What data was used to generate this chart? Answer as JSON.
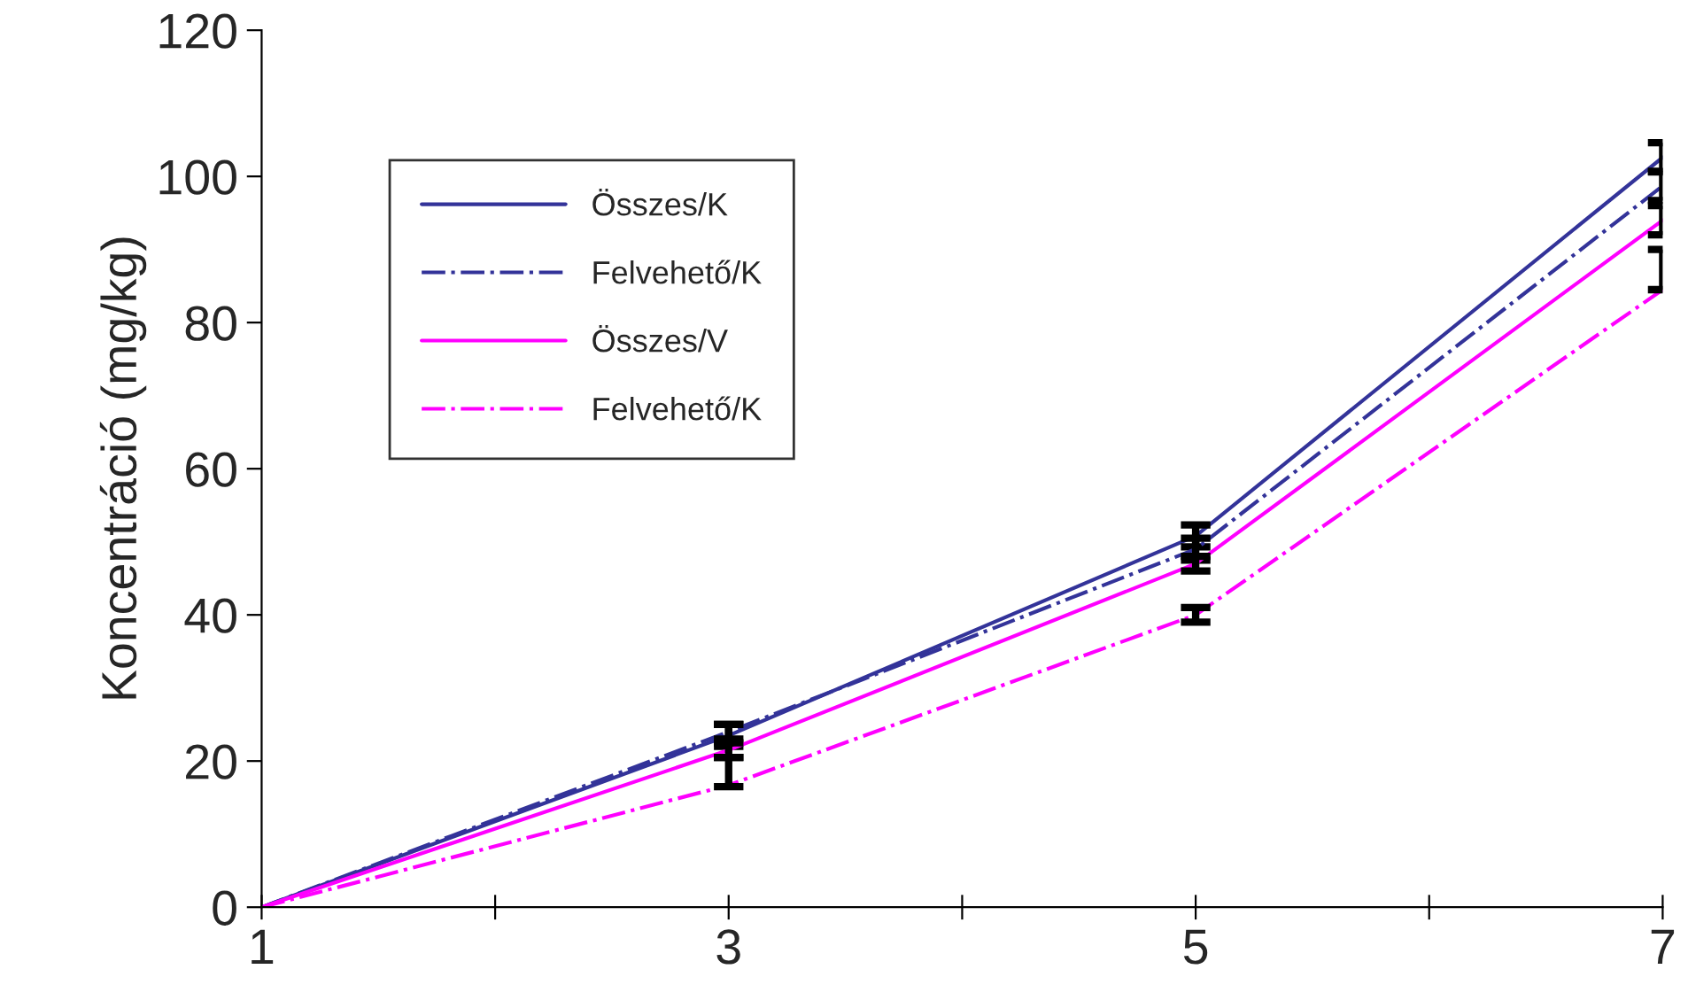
{
  "chart_data": {
    "type": "line",
    "ylabel": "Koncentráció (mg/kg)",
    "x": [
      1,
      3,
      5,
      7
    ],
    "xlim": [
      1,
      7
    ],
    "xticks": [
      1,
      {
        "value": 2,
        "label": null
      },
      3,
      {
        "value": 4,
        "label": null
      },
      5,
      {
        "value": 6,
        "label": null
      },
      7
    ],
    "ylim": [
      0,
      120
    ],
    "yticks": [
      0,
      20,
      40,
      60,
      80,
      100,
      120
    ],
    "grid": false,
    "legend": "top left",
    "marker": "none",
    "series": [
      {
        "name": "Összes/K",
        "color": "#333399",
        "line_style": "solid",
        "values": [
          0,
          23.5,
          50.8,
          102.6
        ],
        "errors": [
          null,
          1.5,
          1.5,
          2
        ]
      },
      {
        "name": "Felvehető/K",
        "color": "#333399",
        "line_style": "dashdot",
        "values": [
          0,
          24,
          49,
          98.7
        ],
        "errors": [
          null,
          1,
          1.5,
          2
        ]
      },
      {
        "name": "Összes/V",
        "color": "#ff00ff",
        "line_style": "solid",
        "values": [
          0,
          21.5,
          47,
          94
        ],
        "errors": [
          null,
          1,
          1,
          2
        ]
      },
      {
        "name": "Felvehető/K",
        "color": "#ff00ff",
        "line_style": "dashdot",
        "values": [
          0,
          16.7,
          40,
          84.5
        ],
        "errors": [
          null,
          [
            16.5,
            20.5
          ],
          1,
          [
            84.5,
            90
          ]
        ]
      }
    ]
  }
}
